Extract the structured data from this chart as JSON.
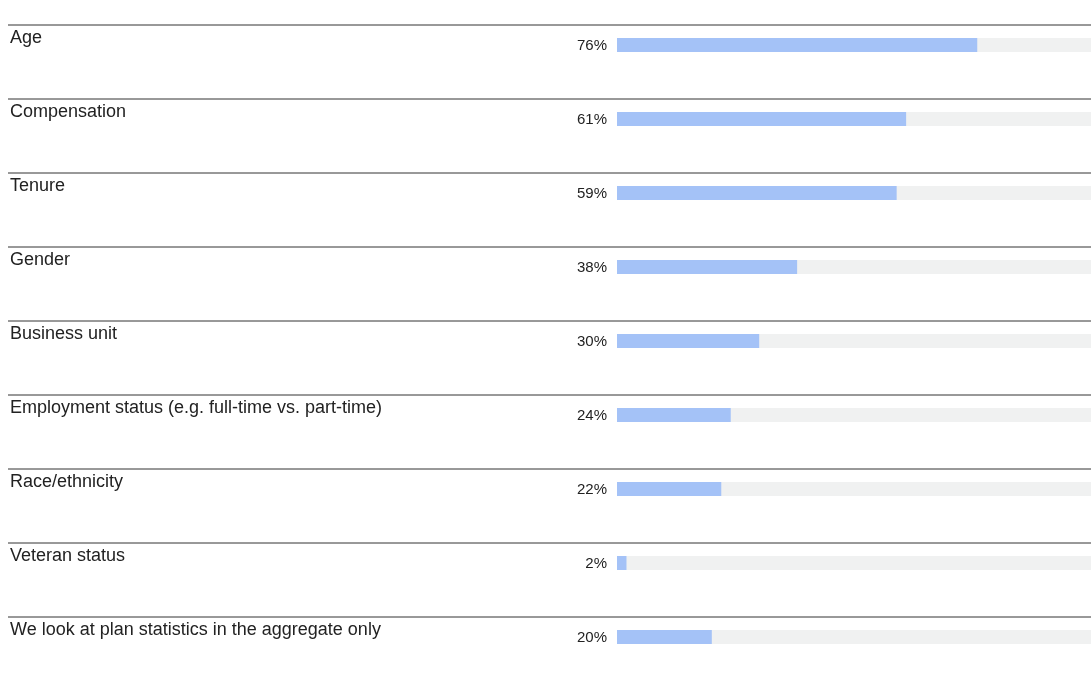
{
  "chart_data": {
    "type": "bar",
    "orientation": "horizontal",
    "categories": [
      "Age",
      "Compensation",
      "Tenure",
      "Gender",
      "Business unit",
      "Employment status (e.g. full-time vs. part-time)",
      "Race/ethnicity",
      "Veteran status",
      "We look at plan statistics in the aggregate only"
    ],
    "values": [
      76,
      61,
      59,
      38,
      30,
      24,
      22,
      2,
      20
    ],
    "value_labels": [
      "76%",
      "61%",
      "59%",
      "38%",
      "30%",
      "24%",
      "22%",
      "2%",
      "20%"
    ],
    "color": "#a4c2f7",
    "xlim": [
      0,
      100
    ],
    "tick_labels": false
  }
}
